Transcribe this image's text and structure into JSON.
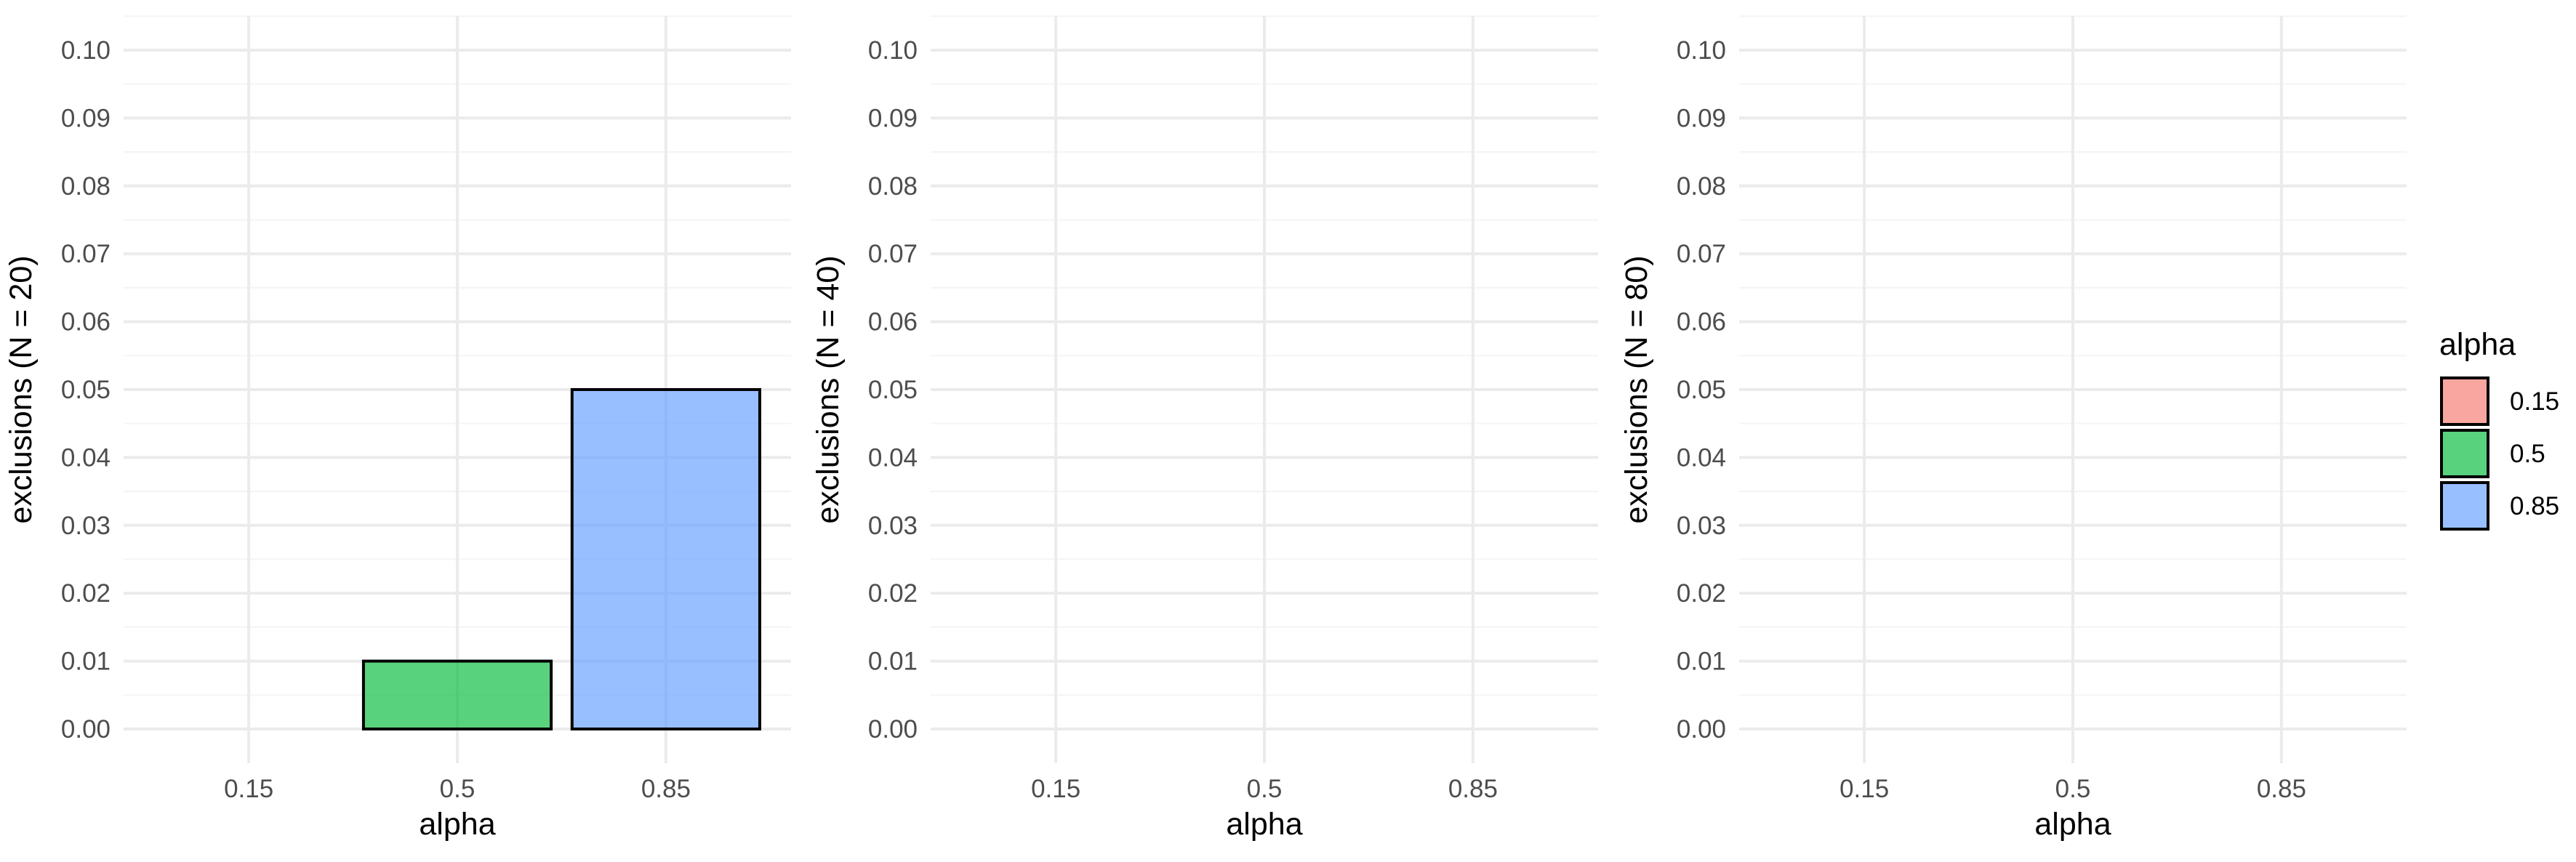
{
  "chart_data": [
    {
      "type": "bar",
      "categories": [
        "0.15",
        "0.5",
        "0.85"
      ],
      "values": [
        0,
        0.01,
        0.05
      ],
      "xlabel": "alpha",
      "ylabel": "exclusions (N = 20)",
      "ylim": [
        0,
        0.1
      ],
      "yticks": [
        "0.00",
        "0.01",
        "0.02",
        "0.03",
        "0.04",
        "0.05",
        "0.06",
        "0.07",
        "0.08",
        "0.09",
        "0.10"
      ],
      "grid": true
    },
    {
      "type": "bar",
      "categories": [
        "0.15",
        "0.5",
        "0.85"
      ],
      "values": [
        0,
        0,
        0
      ],
      "xlabel": "alpha",
      "ylabel": "exclusions (N = 40)",
      "ylim": [
        0,
        0.1
      ],
      "yticks": [
        "0.00",
        "0.01",
        "0.02",
        "0.03",
        "0.04",
        "0.05",
        "0.06",
        "0.07",
        "0.08",
        "0.09",
        "0.10"
      ],
      "grid": true
    },
    {
      "type": "bar",
      "categories": [
        "0.15",
        "0.5",
        "0.85"
      ],
      "values": [
        0,
        0,
        0
      ],
      "xlabel": "alpha",
      "ylabel": "exclusions (N = 80)",
      "ylim": [
        0,
        0.1
      ],
      "yticks": [
        "0.00",
        "0.01",
        "0.02",
        "0.03",
        "0.04",
        "0.05",
        "0.06",
        "0.07",
        "0.08",
        "0.09",
        "0.10"
      ],
      "grid": true
    }
  ],
  "legend": {
    "title": "alpha",
    "placement": "right",
    "items": [
      {
        "label": "0.15",
        "color": "#F8766D"
      },
      {
        "label": "0.5",
        "color": "#00BA38"
      },
      {
        "label": "0.85",
        "color": "#619CFF"
      }
    ]
  },
  "style": {
    "fill_opacity": 0.65,
    "bar_outline": "#000000",
    "grid_major": "#ebebeb",
    "grid_minor": "#f5f5f5"
  }
}
